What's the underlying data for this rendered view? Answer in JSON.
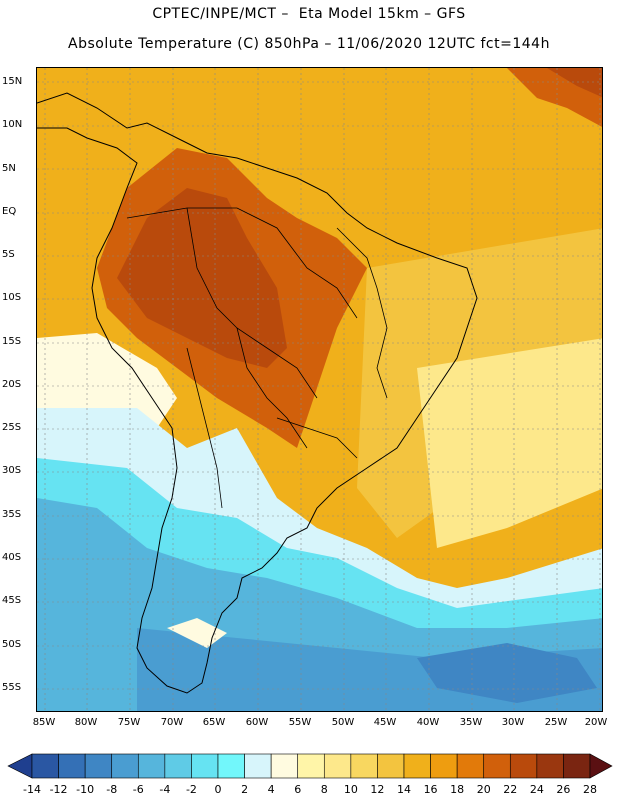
{
  "header": {
    "line1": "CPTEC/INPE/MCT –  Eta Model 15km – GFS",
    "line2": "Absolute Temperature (C) 850hPa – 11/06/2020 12UTC fct=144h"
  },
  "axes": {
    "lat_labels": [
      "15N",
      "10N",
      "5N",
      "EQ",
      "5S",
      "10S",
      "15S",
      "20S",
      "25S",
      "30S",
      "35S",
      "40S",
      "45S",
      "50S",
      "55S"
    ],
    "lon_labels": [
      "85W",
      "80W",
      "75W",
      "70W",
      "65W",
      "60W",
      "55W",
      "50W",
      "45W",
      "40W",
      "35W",
      "30W",
      "25W",
      "20W"
    ]
  },
  "colorbar": {
    "labels": [
      "-14",
      "-12",
      "-10",
      "-8",
      "-6",
      "-4",
      "-2",
      "0",
      "2",
      "4",
      "6",
      "8",
      "10",
      "12",
      "14",
      "16",
      "18",
      "20",
      "22",
      "24",
      "26",
      "28"
    ],
    "colors": [
      "#1f3f8f",
      "#2a57a3",
      "#3470b6",
      "#3f86c4",
      "#4a9dd1",
      "#56b5dc",
      "#5fcbe6",
      "#66e3f2",
      "#72f7fb",
      "#d7f5fb",
      "#fffbe0",
      "#fff5a8",
      "#fde88b",
      "#f8d760",
      "#f3c43f",
      "#f0b01b",
      "#ee9d10",
      "#e27a0a",
      "#d1600b",
      "#b94a0c",
      "#9a370f",
      "#7a2511",
      "#5a1012"
    ]
  },
  "fills": {
    "ocean_warm": "#f0b01b",
    "ocean_mid": "#f3c43f",
    "land_hot": "#d1600b",
    "land_hotter": "#b94a0c",
    "south_warm": "#f8d760",
    "south_pale": "#fde88b",
    "cool_cream": "#fffbe0",
    "cool_light": "#d7f5fb",
    "cool_cyan": "#66e3f2",
    "cool_blue": "#56b5dc",
    "cool_deep": "#4a9dd1",
    "cool_deeper": "#3f86c4"
  }
}
